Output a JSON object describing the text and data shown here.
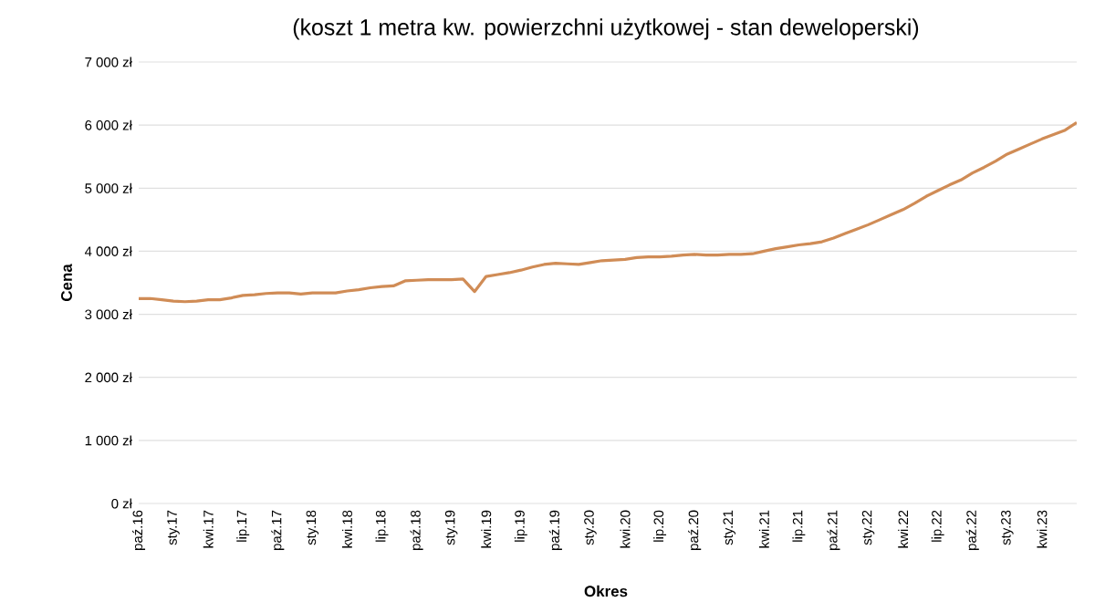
{
  "chart_data": {
    "type": "line",
    "title": "(koszt 1 metra kw. powierzchni użytkowej - stan deweloperski)",
    "xlabel": "Okres",
    "ylabel": "Cena",
    "categories": [
      "paź.16",
      null,
      null,
      "sty.17",
      null,
      null,
      "kwi.17",
      null,
      null,
      "lip.17",
      null,
      null,
      "paź.17",
      null,
      null,
      "sty.18",
      null,
      null,
      "kwi.18",
      null,
      null,
      "lip.18",
      null,
      null,
      "paź.18",
      null,
      null,
      "sty.19",
      null,
      null,
      "kwi.19",
      null,
      null,
      "lip.19",
      null,
      null,
      "paź.19",
      null,
      null,
      "sty.20",
      null,
      null,
      "kwi.20",
      null,
      null,
      "lip.20",
      null,
      null,
      "paź.20",
      null,
      null,
      "sty.21",
      null,
      null,
      "kwi.21",
      null,
      null,
      "lip.21",
      null,
      null,
      "paź.21",
      null,
      null,
      "sty.22",
      null,
      null,
      "kwi.22",
      null,
      null,
      "lip.22",
      null,
      null,
      "paź.22",
      null,
      null,
      "sty.23",
      null,
      null,
      "kwi.23",
      null,
      null,
      null
    ],
    "series": [
      {
        "color": "#d08c56",
        "values": [
          3250,
          3250,
          3230,
          3210,
          3200,
          3210,
          3230,
          3230,
          3260,
          3300,
          3310,
          3330,
          3340,
          3340,
          3320,
          3340,
          3340,
          3340,
          3370,
          3390,
          3420,
          3440,
          3450,
          3530,
          3540,
          3550,
          3550,
          3550,
          3560,
          3360,
          3600,
          3630,
          3660,
          3700,
          3750,
          3790,
          3810,
          3800,
          3790,
          3820,
          3850,
          3860,
          3870,
          3900,
          3910,
          3910,
          3920,
          3940,
          3950,
          3940,
          3940,
          3950,
          3950,
          3960,
          4000,
          4040,
          4070,
          4100,
          4120,
          4150,
          4210,
          4280,
          4350,
          4420,
          4500,
          4580,
          4660,
          4760,
          4870,
          4960,
          5050,
          5130,
          5240,
          5330,
          5430,
          5540,
          5620,
          5700,
          5780,
          5850,
          5920,
          6040
        ]
      }
    ],
    "ylim": [
      0,
      7000
    ],
    "yticks": [
      {
        "value": 0,
        "label": "0 zł"
      },
      {
        "value": 1000,
        "label": "1 000 zł"
      },
      {
        "value": 2000,
        "label": "2 000 zł"
      },
      {
        "value": 3000,
        "label": "3 000 zł"
      },
      {
        "value": 4000,
        "label": "4 000 zł"
      },
      {
        "value": 5000,
        "label": "5 000 zł"
      },
      {
        "value": 6000,
        "label": "6 000 zł"
      },
      {
        "value": 7000,
        "label": "7 000 zł"
      }
    ],
    "grid": "y",
    "marker": "none",
    "line_style": "solid"
  }
}
